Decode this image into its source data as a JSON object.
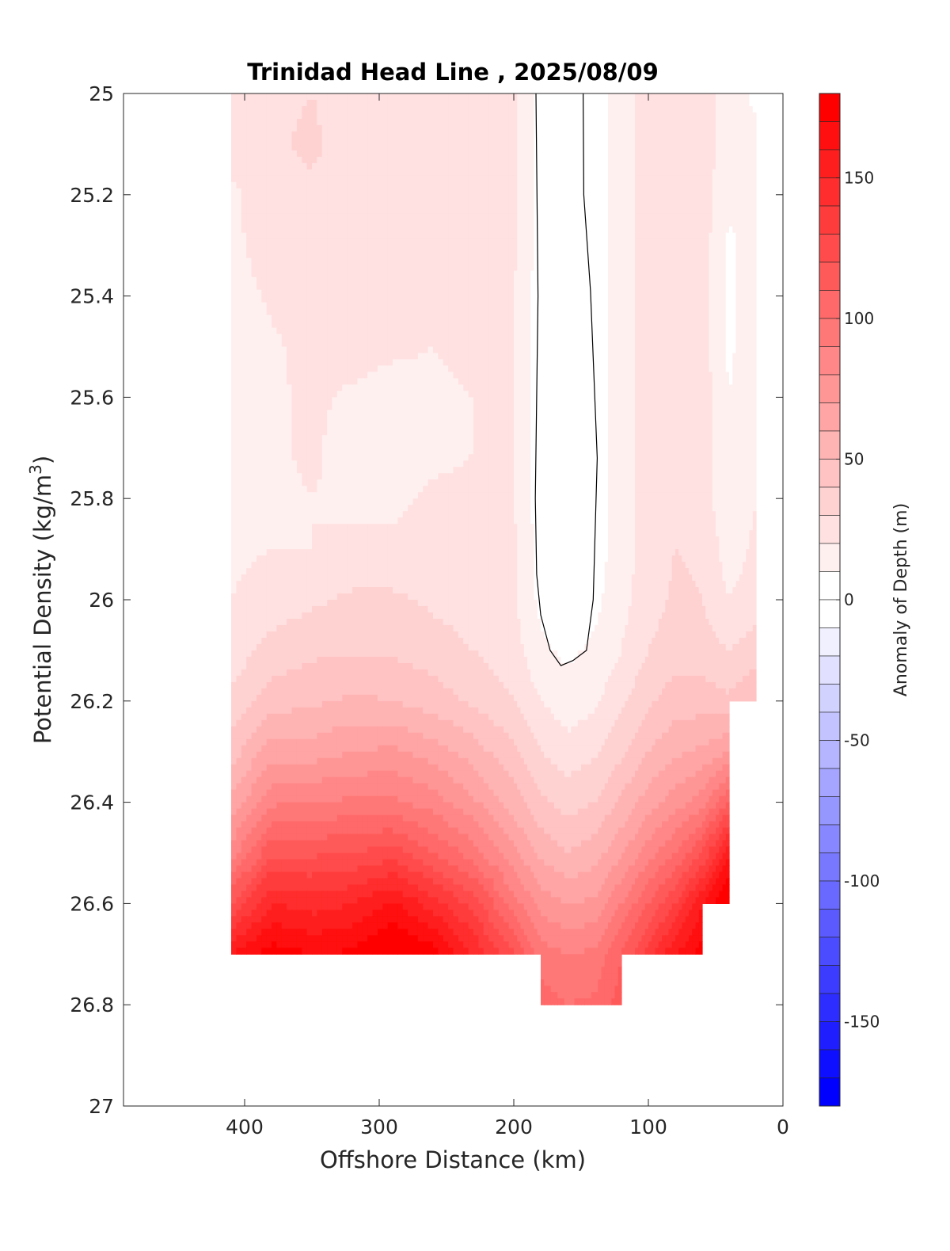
{
  "chart_data": {
    "type": "heatmap",
    "subtype": "filled-contour",
    "title": "Trinidad Head Line , 2025/08/09",
    "xlabel": "Offshore Distance (km)",
    "ylabel_main": "Potential Density (kg/m",
    "ylabel_sup": "3",
    "ylabel_close": ")",
    "xlim": [
      490,
      0
    ],
    "ylim": [
      25,
      27
    ],
    "x_ticks": [
      400,
      300,
      200,
      100,
      0
    ],
    "x_tick_labels": [
      "400",
      "300",
      "200",
      "100",
      "0"
    ],
    "y_ticks": [
      25,
      25.2,
      25.4,
      25.6,
      25.8,
      26,
      26.2,
      26.4,
      26.6,
      26.8,
      27
    ],
    "y_tick_labels": [
      "25",
      "25.2",
      "25.4",
      "25.6",
      "25.8",
      "26",
      "26.2",
      "26.4",
      "26.6",
      "26.8",
      "27"
    ],
    "colorbar": {
      "label": "Anomaly of Depth (m)",
      "range": [
        -180,
        180
      ],
      "level_step": 10,
      "ticks": [
        150,
        100,
        50,
        0,
        -50,
        -100,
        -150
      ],
      "tick_labels": [
        "150",
        "100",
        "50",
        "0",
        "-50",
        "-100",
        "-150"
      ],
      "colormap": "blue-white-red",
      "neg_color": "#0000ff",
      "pos_color": "#ff0000"
    },
    "grid": {
      "x": [
        410,
        380,
        350,
        320,
        290,
        260,
        230,
        200,
        180,
        160,
        140,
        120,
        100,
        80,
        60,
        40,
        20
      ],
      "y": [
        25.0,
        25.1,
        25.2,
        25.3,
        25.4,
        25.5,
        25.6,
        25.7,
        25.8,
        25.9,
        26.0,
        26.1,
        26.2,
        26.3,
        26.4,
        26.5,
        26.6,
        26.7,
        26.8
      ],
      "values": [
        [
          25,
          28,
          30,
          25,
          25,
          25,
          25,
          22,
          5,
          3,
          5,
          15,
          25,
          30,
          25,
          15,
          8
        ],
        [
          25,
          28,
          32,
          25,
          25,
          25,
          25,
          22,
          5,
          3,
          5,
          15,
          25,
          30,
          25,
          15,
          12
        ],
        [
          18,
          26,
          28,
          25,
          25,
          25,
          25,
          22,
          5,
          3,
          5,
          15,
          25,
          30,
          25,
          12,
          15
        ],
        [
          18,
          24,
          25,
          25,
          25,
          25,
          25,
          22,
          5,
          3,
          5,
          15,
          25,
          30,
          25,
          8,
          15
        ],
        [
          15,
          22,
          25,
          25,
          25,
          25,
          22,
          20,
          5,
          3,
          5,
          15,
          25,
          30,
          25,
          8,
          18
        ],
        [
          12,
          18,
          24,
          25,
          22,
          20,
          22,
          20,
          5,
          3,
          5,
          15,
          25,
          30,
          25,
          8,
          18
        ],
        [
          12,
          18,
          22,
          18,
          15,
          18,
          20,
          20,
          5,
          1,
          5,
          15,
          25,
          30,
          25,
          10,
          18
        ],
        [
          12,
          18,
          22,
          15,
          15,
          17,
          20,
          20,
          5,
          -2,
          5,
          15,
          25,
          30,
          25,
          10,
          18
        ],
        [
          14,
          18,
          20,
          18,
          18,
          22,
          22,
          20,
          5,
          0,
          5,
          15,
          25,
          30,
          25,
          12,
          20
        ],
        [
          18,
          20,
          20,
          22,
          22,
          25,
          25,
          22,
          5,
          2,
          5,
          15,
          25,
          30,
          28,
          15,
          22
        ],
        [
          20,
          24,
          28,
          32,
          32,
          28,
          25,
          22,
          7,
          5,
          7,
          17,
          25,
          32,
          30,
          20,
          25
        ],
        [
          24,
          34,
          38,
          38,
          38,
          35,
          30,
          24,
          12,
          8,
          12,
          20,
          30,
          36,
          35,
          30,
          35
        ],
        [
          32,
          45,
          48,
          52,
          50,
          45,
          38,
          30,
          20,
          14,
          18,
          28,
          38,
          45,
          45,
          42,
          50
        ],
        [
          45,
          65,
          65,
          70,
          72,
          65,
          55,
          42,
          30,
          24,
          28,
          38,
          50,
          58,
          62,
          70,
          null
        ],
        [
          62,
          88,
          90,
          92,
          92,
          85,
          72,
          55,
          42,
          36,
          40,
          52,
          65,
          75,
          85,
          110,
          null
        ],
        [
          85,
          118,
          118,
          120,
          125,
          110,
          95,
          72,
          58,
          50,
          55,
          68,
          85,
          100,
          120,
          160,
          null
        ],
        [
          120,
          150,
          145,
          150,
          162,
          145,
          125,
          95,
          75,
          70,
          72,
          90,
          110,
          130,
          160,
          185,
          null
        ],
        [
          160,
          175,
          170,
          172,
          185,
          175,
          150,
          120,
          95,
          90,
          92,
          110,
          135,
          160,
          175,
          null,
          null
        ],
        [
          null,
          null,
          null,
          null,
          null,
          null,
          null,
          null,
          105,
          100,
          102,
          115,
          null,
          null,
          null,
          null,
          null
        ]
      ]
    },
    "zero_contour": [
      [
        183.5,
        25.0
      ],
      [
        182,
        25.4
      ],
      [
        184,
        25.8
      ],
      [
        183,
        25.95
      ],
      [
        180,
        26.03
      ],
      [
        173,
        26.1
      ],
      [
        165,
        26.13
      ],
      [
        156,
        26.12
      ],
      [
        146,
        26.1
      ],
      [
        141,
        26.0
      ],
      [
        138,
        25.72
      ],
      [
        143,
        25.39
      ],
      [
        148,
        25.2
      ],
      [
        148.5,
        25.0
      ]
    ]
  }
}
